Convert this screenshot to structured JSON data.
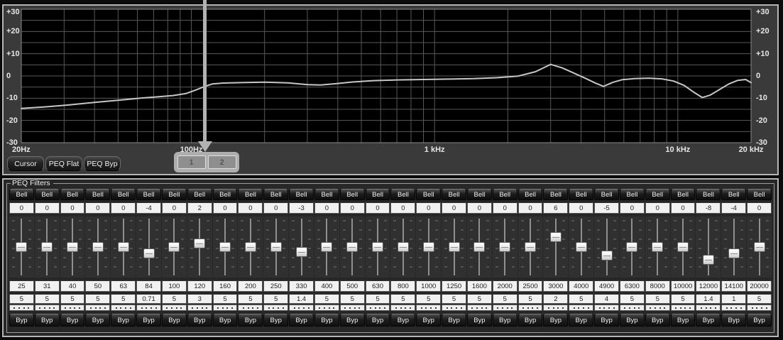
{
  "colors": {
    "panel_border": "#b6b6b6",
    "graph_background": "#000000",
    "grid_line": "#585858",
    "curve": "#c6c6c6",
    "annotation_arrow": "#b2b2b2"
  },
  "annotation": {
    "type": "arrow-down",
    "points_to": "page-tab-1"
  },
  "chart_data": {
    "type": "line",
    "title": "",
    "xlabel": "",
    "ylabel": "",
    "x_scale": "log",
    "x_range": [
      20,
      20000
    ],
    "y_range": [
      -30,
      30
    ],
    "y_grid_step": 5,
    "grid": true,
    "legend_position": "none",
    "x_ticks": [
      {
        "v": 20,
        "label": "20Hz"
      },
      {
        "v": 100,
        "label": "100Hz"
      },
      {
        "v": 1000,
        "label": "1 kHz"
      },
      {
        "v": 10000,
        "label": "10 kHz"
      },
      {
        "v": 20000,
        "label": "20 kHz"
      }
    ],
    "y_ticks": [
      {
        "v": 30,
        "label": "+30"
      },
      {
        "v": 20,
        "label": "+20"
      },
      {
        "v": 10,
        "label": "+10"
      },
      {
        "v": 0,
        "label": "0"
      },
      {
        "v": -10,
        "label": "-10"
      },
      {
        "v": -20,
        "label": "-20"
      },
      {
        "v": -30,
        "label": "-30"
      }
    ],
    "series": [
      {
        "name": "frequency-response",
        "points": [
          [
            20,
            -14.6
          ],
          [
            25,
            -13.9
          ],
          [
            31,
            -13.1
          ],
          [
            40,
            -11.9
          ],
          [
            50,
            -10.9
          ],
          [
            63,
            -9.9
          ],
          [
            72,
            -9.4
          ],
          [
            84,
            -8.8
          ],
          [
            95,
            -7.9
          ],
          [
            105,
            -6.2
          ],
          [
            113,
            -4.8
          ],
          [
            122,
            -3.6
          ],
          [
            135,
            -3.2
          ],
          [
            160,
            -3.0
          ],
          [
            200,
            -2.8
          ],
          [
            250,
            -3.1
          ],
          [
            300,
            -3.9
          ],
          [
            340,
            -4.1
          ],
          [
            390,
            -3.5
          ],
          [
            460,
            -2.7
          ],
          [
            560,
            -2.1
          ],
          [
            700,
            -1.8
          ],
          [
            900,
            -1.6
          ],
          [
            1150,
            -1.4
          ],
          [
            1450,
            -1.2
          ],
          [
            1800,
            -0.8
          ],
          [
            2200,
            -0.1
          ],
          [
            2600,
            1.9
          ],
          [
            3000,
            5.2
          ],
          [
            3350,
            3.6
          ],
          [
            3750,
            1.2
          ],
          [
            4200,
            -1.2
          ],
          [
            4600,
            -3.3
          ],
          [
            4950,
            -4.7
          ],
          [
            5400,
            -2.9
          ],
          [
            5900,
            -1.7
          ],
          [
            6600,
            -1.2
          ],
          [
            7600,
            -1.0
          ],
          [
            8600,
            -1.3
          ],
          [
            9600,
            -2.3
          ],
          [
            10600,
            -4.2
          ],
          [
            11600,
            -7.2
          ],
          [
            12600,
            -9.7
          ],
          [
            13600,
            -8.6
          ],
          [
            14800,
            -6.2
          ],
          [
            16200,
            -3.6
          ],
          [
            17600,
            -2.0
          ],
          [
            19000,
            -1.6
          ],
          [
            20000,
            -3.0
          ]
        ]
      }
    ]
  },
  "graph_toolbar": {
    "cursor": "Cursor",
    "peq_flat": "PEQ Flat",
    "peq_byp": "PEQ Byp",
    "tabs": [
      "1",
      "2"
    ]
  },
  "peq": {
    "legend": "PEQ Filters",
    "bypass_label": "Byp",
    "bands": [
      {
        "type": "Bell",
        "gain": "0",
        "freq": "25",
        "q": "5"
      },
      {
        "type": "Bell",
        "gain": "0",
        "freq": "31",
        "q": "5"
      },
      {
        "type": "Bell",
        "gain": "0",
        "freq": "40",
        "q": "5"
      },
      {
        "type": "Bell",
        "gain": "0",
        "freq": "50",
        "q": "5"
      },
      {
        "type": "Bell",
        "gain": "0",
        "freq": "63",
        "q": "5"
      },
      {
        "type": "Bell",
        "gain": "-4",
        "freq": "84",
        "q": "0.71"
      },
      {
        "type": "Bell",
        "gain": "0",
        "freq": "100",
        "q": "5"
      },
      {
        "type": "Bell",
        "gain": "2",
        "freq": "120",
        "q": "3"
      },
      {
        "type": "Bell",
        "gain": "0",
        "freq": "160",
        "q": "5"
      },
      {
        "type": "Bell",
        "gain": "0",
        "freq": "200",
        "q": "5"
      },
      {
        "type": "Bell",
        "gain": "0",
        "freq": "250",
        "q": "5"
      },
      {
        "type": "Bell",
        "gain": "-3",
        "freq": "330",
        "q": "1.4"
      },
      {
        "type": "Bell",
        "gain": "0",
        "freq": "400",
        "q": "5"
      },
      {
        "type": "Bell",
        "gain": "0",
        "freq": "500",
        "q": "5"
      },
      {
        "type": "Bell",
        "gain": "0",
        "freq": "630",
        "q": "5"
      },
      {
        "type": "Bell",
        "gain": "0",
        "freq": "800",
        "q": "5"
      },
      {
        "type": "Bell",
        "gain": "0",
        "freq": "1000",
        "q": "5"
      },
      {
        "type": "Bell",
        "gain": "0",
        "freq": "1250",
        "q": "5"
      },
      {
        "type": "Bell",
        "gain": "0",
        "freq": "1600",
        "q": "5"
      },
      {
        "type": "Bell",
        "gain": "0",
        "freq": "2000",
        "q": "5"
      },
      {
        "type": "Bell",
        "gain": "0",
        "freq": "2500",
        "q": "5"
      },
      {
        "type": "Bell",
        "gain": "6",
        "freq": "3000",
        "q": "2"
      },
      {
        "type": "Bell",
        "gain": "0",
        "freq": "4000",
        "q": "5"
      },
      {
        "type": "Bell",
        "gain": "-5",
        "freq": "4900",
        "q": "4"
      },
      {
        "type": "Bell",
        "gain": "0",
        "freq": "6300",
        "q": "5"
      },
      {
        "type": "Bell",
        "gain": "0",
        "freq": "8000",
        "q": "5"
      },
      {
        "type": "Bell",
        "gain": "0",
        "freq": "10000",
        "q": "5"
      },
      {
        "type": "Bell",
        "gain": "-8",
        "freq": "12000",
        "q": "1.4"
      },
      {
        "type": "Bell",
        "gain": "-4",
        "freq": "14100",
        "q": "1"
      },
      {
        "type": "Bell",
        "gain": "0",
        "freq": "20000",
        "q": "5"
      }
    ]
  }
}
